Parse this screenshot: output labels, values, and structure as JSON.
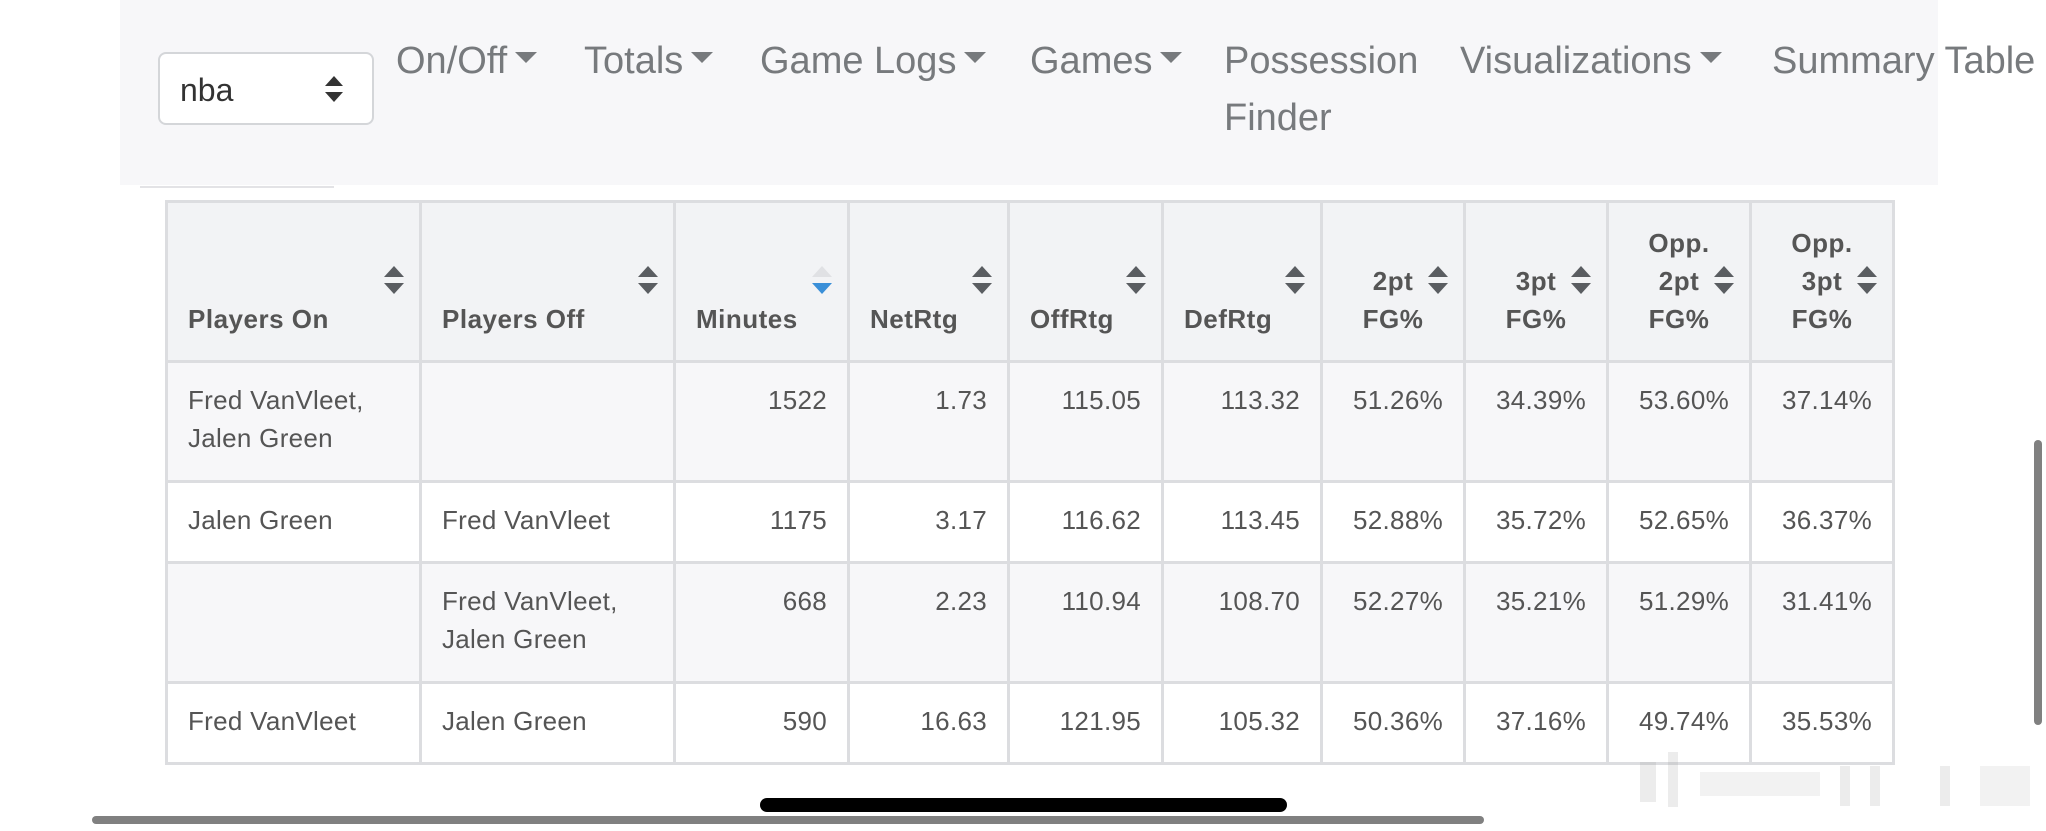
{
  "league_select": {
    "value": "nba"
  },
  "nav": {
    "on_off": "On/Off",
    "totals": "Totals",
    "game_logs": "Game Logs",
    "games": "Games",
    "possession_line1": "Possession",
    "possession_line2": "Finder",
    "visualizations": "Visualizations",
    "summary_table": "Summary Table"
  },
  "table": {
    "headers": {
      "players_on": "Players On",
      "players_off": "Players Off",
      "minutes": "Minutes",
      "netrtg": "NetRtg",
      "offrtg": "OffRtg",
      "defrtg": "DefRtg",
      "fg2_l1": "2pt",
      "fg2_l2": "FG%",
      "fg3_l1": "3pt",
      "fg3_l2": "FG%",
      "opp2_l1": "Opp.",
      "opp2_l2": "2pt",
      "opp2_l3": "FG%",
      "opp3_l1": "Opp.",
      "opp3_l2": "3pt",
      "opp3_l3": "FG%"
    },
    "sort_active_color": "#3a8fd8",
    "sort_inactive_color": "#5a5d61",
    "rows": [
      {
        "players_on_l1": "Fred VanVleet,",
        "players_on_l2": "Jalen Green",
        "players_off_l1": "",
        "players_off_l2": "",
        "minutes": "1522",
        "netrtg": "1.73",
        "offrtg": "115.05",
        "defrtg": "113.32",
        "fg2": "51.26%",
        "fg3": "34.39%",
        "opp2": "53.60%",
        "opp3": "37.14%"
      },
      {
        "players_on_l1": "Jalen Green",
        "players_on_l2": "",
        "players_off_l1": "Fred VanVleet",
        "players_off_l2": "",
        "minutes": "1175",
        "netrtg": "3.17",
        "offrtg": "116.62",
        "defrtg": "113.45",
        "fg2": "52.88%",
        "fg3": "35.72%",
        "opp2": "52.65%",
        "opp3": "36.37%"
      },
      {
        "players_on_l1": "",
        "players_on_l2": "",
        "players_off_l1": "Fred VanVleet,",
        "players_off_l2": "Jalen Green",
        "minutes": "668",
        "netrtg": "2.23",
        "offrtg": "110.94",
        "defrtg": "108.70",
        "fg2": "52.27%",
        "fg3": "35.21%",
        "opp2": "51.29%",
        "opp3": "31.41%"
      },
      {
        "players_on_l1": "Fred VanVleet",
        "players_on_l2": "",
        "players_off_l1": "Jalen Green",
        "players_off_l2": "",
        "minutes": "590",
        "netrtg": "16.63",
        "offrtg": "121.95",
        "defrtg": "105.32",
        "fg2": "50.36%",
        "fg3": "37.16%",
        "opp2": "49.74%",
        "opp3": "35.53%"
      }
    ]
  }
}
